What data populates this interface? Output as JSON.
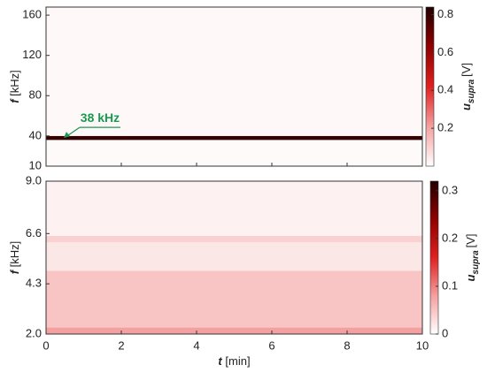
{
  "chart_data": [
    {
      "type": "heatmap",
      "y_label_symbol": "f",
      "y_label_unit": "[kHz]",
      "xlim": [
        0,
        10
      ],
      "xticks": [
        0,
        2,
        4,
        6,
        8,
        10
      ],
      "x_tick_labels": false,
      "ylim": [
        10,
        168
      ],
      "yticks": [
        10,
        40,
        80,
        120,
        160
      ],
      "y_bins": [
        10,
        36,
        40,
        168
      ],
      "values": [
        0.01,
        0.8,
        0.015
      ],
      "clim": [
        0,
        0.84
      ],
      "cticks": [
        0.2,
        0.4,
        0.6,
        0.8
      ],
      "colors": [
        "#ffffff",
        "#f4a0a0",
        "#e02020",
        "#900000",
        "#200000"
      ],
      "c_label_symbol": "u",
      "c_label_sub": "supra",
      "c_label_unit": "[V]",
      "annotation": {
        "text": "38 kHz",
        "t": 0.47,
        "f": 38,
        "color": "#1a9a50"
      }
    },
    {
      "type": "heatmap",
      "y_label_symbol": "f",
      "y_label_unit": "[kHz]",
      "x_label_symbol": "t",
      "x_label_unit": "[min]",
      "xlim": [
        0,
        10
      ],
      "xticks": [
        0,
        2,
        4,
        6,
        8,
        10
      ],
      "x_tick_labels": true,
      "ylim": [
        2,
        9
      ],
      "yticks": [
        {
          "value": 2,
          "label": "2.0"
        },
        4.3,
        6.6,
        {
          "value": 9,
          "label": "9.0"
        }
      ],
      "y_bins": [
        2,
        2.3,
        4.9,
        6.2,
        6.5,
        9
      ],
      "values": [
        0.08,
        0.05,
        0.02,
        0.04,
        0.012
      ],
      "clim": [
        0,
        0.32
      ],
      "cticks": [
        0,
        0.1,
        0.2,
        0.3
      ],
      "colors": [
        "#ffffff",
        "#f4a0a0",
        "#e02020",
        "#900000",
        "#200000"
      ],
      "c_label_symbol": "u",
      "c_label_sub": "supra",
      "c_label_unit": "[V]"
    }
  ]
}
